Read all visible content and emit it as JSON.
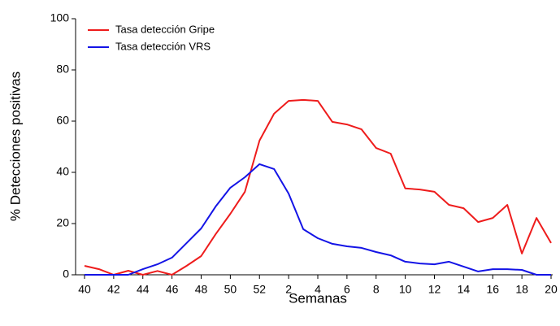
{
  "chart_data": {
    "type": "line",
    "x_label": "Semanas",
    "y_label": "% Detecciones positivas",
    "categories": [
      "40",
      null,
      "42",
      null,
      "44",
      null,
      "46",
      null,
      "48",
      null,
      "50",
      null,
      "52",
      null,
      "2",
      null,
      "4",
      null,
      "6",
      null,
      "8",
      null,
      "10",
      null,
      "12",
      null,
      "14",
      null,
      "16",
      null,
      "18",
      null,
      "20"
    ],
    "series": [
      {
        "name": "Tasa detección Gripe",
        "color": "#ee1c1c",
        "values": [
          3.5,
          2.2,
          0,
          1.6,
          0,
          1.5,
          0,
          3.5,
          7.3,
          15.9,
          23.8,
          32.4,
          52.4,
          62.9,
          67.9,
          68.3,
          67.9,
          59.7,
          58.7,
          56.8,
          49.5,
          47.3,
          33.7,
          33.3,
          32.4,
          27.3,
          26,
          20.6,
          22.2,
          27.3,
          8.3,
          22.2,
          12.4
        ]
      },
      {
        "name": "Tasa detección VRS",
        "color": "#1414e6",
        "values": [
          0,
          0,
          0,
          0,
          2.2,
          4.1,
          6.7,
          12.4,
          18.1,
          26.7,
          34,
          38.1,
          43.2,
          41.3,
          31.7,
          17.8,
          14.3,
          12.1,
          11.1,
          10.5,
          8.9,
          7.6,
          5.1,
          4.4,
          4.1,
          5.1,
          3.2,
          1.3,
          2.2,
          2.2,
          1.9,
          0,
          0
        ]
      }
    ],
    "ylim": [
      0,
      100
    ],
    "yticks": [
      0,
      20,
      40,
      60,
      80,
      100
    ],
    "legend": "top-left"
  }
}
